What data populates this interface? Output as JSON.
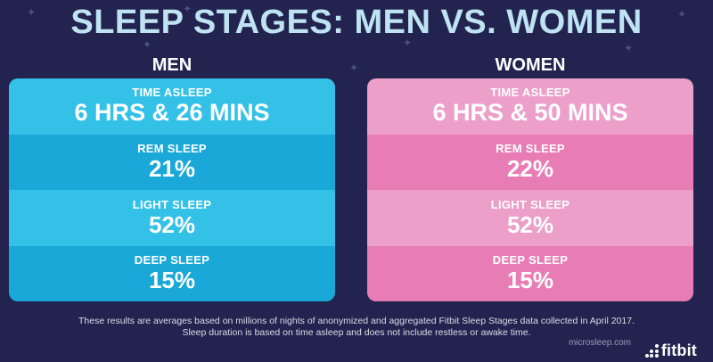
{
  "title": "SLEEP STAGES: MEN VS. WOMEN",
  "panels": [
    {
      "heading": "MEN",
      "color": "#1aa8d8",
      "rows": [
        {
          "label": "TIME ASLEEP",
          "value": "6 HRS & 26 MINS"
        },
        {
          "label": "REM SLEEP",
          "value": "21%"
        },
        {
          "label": "LIGHT SLEEP",
          "value": "52%"
        },
        {
          "label": "DEEP SLEEP",
          "value": "15%"
        }
      ]
    },
    {
      "heading": "WOMEN",
      "color": "#e87db5",
      "rows": [
        {
          "label": "TIME ASLEEP",
          "value": "6 HRS & 50 MINS"
        },
        {
          "label": "REM SLEEP",
          "value": "22%"
        },
        {
          "label": "LIGHT SLEEP",
          "value": "52%"
        },
        {
          "label": "DEEP SLEEP",
          "value": "15%"
        }
      ]
    }
  ],
  "footnote": {
    "line1": "These results are averages based on millions of nights of anonymized and aggregated Fitbit Sleep Stages data collected in April 2017.",
    "line2": "Sleep duration is based on time asleep and does not include restless or awake time."
  },
  "brand": {
    "name": "fitbit",
    "icon": "fitbit-logo-icon"
  },
  "watermark": "microsleep.com",
  "colors": {
    "background": "#22244f",
    "title": "#bfe3f2",
    "men_light": "#34c1e8",
    "men_dark": "#1aa8d8",
    "women_light": "#eb9fc9",
    "women_dark": "#e87db5"
  }
}
